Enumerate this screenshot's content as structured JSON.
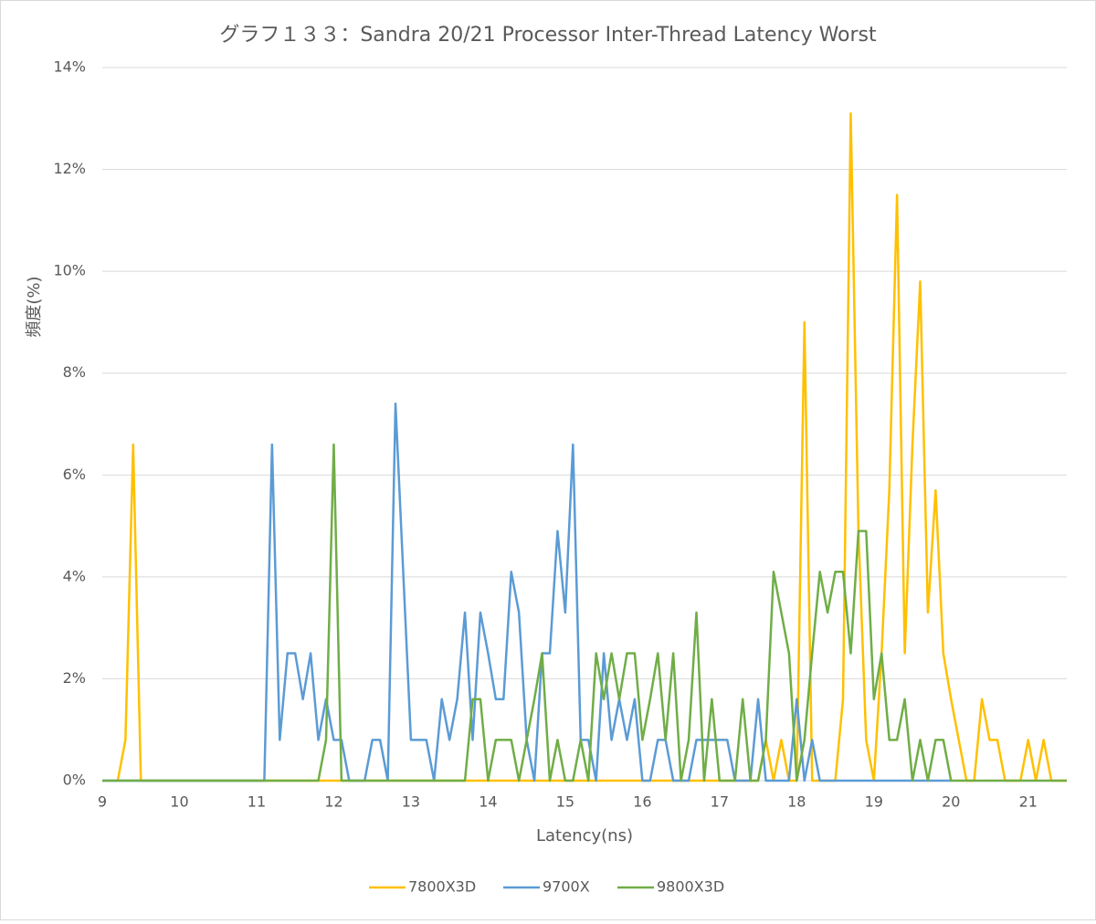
{
  "chart_data": {
    "type": "line",
    "title": "グラフ１３３：Sandra 20/21 Processor Inter-Thread Latency Worst",
    "x_label": "Latency(ns)",
    "y_label": "頻度(%)",
    "xlim": [
      9,
      21.5
    ],
    "ylim": [
      0,
      14
    ],
    "xticks": [
      9,
      10,
      11,
      12,
      13,
      14,
      15,
      16,
      17,
      18,
      19,
      20,
      21
    ],
    "yticks": [
      {
        "value": 0,
        "label": "0%"
      },
      {
        "value": 2,
        "label": "2%"
      },
      {
        "value": 4,
        "label": "4%"
      },
      {
        "value": 6,
        "label": "6%"
      },
      {
        "value": 8,
        "label": "8%"
      },
      {
        "value": 10,
        "label": "10%"
      },
      {
        "value": 12,
        "label": "12%"
      },
      {
        "value": 14,
        "label": "14%"
      }
    ],
    "grid": true,
    "legend": "bottom",
    "x": [
      9,
      9.1,
      9.2,
      9.3,
      9.4,
      9.5,
      9.6,
      9.7,
      9.8,
      9.9,
      10,
      10.1,
      10.2,
      10.3,
      10.4,
      10.5,
      10.6,
      10.7,
      10.8,
      10.9,
      11,
      11.1,
      11.2,
      11.3,
      11.4,
      11.5,
      11.6,
      11.7,
      11.8,
      11.9,
      12,
      12.1,
      12.2,
      12.3,
      12.4,
      12.5,
      12.6,
      12.7,
      12.8,
      12.9,
      13,
      13.1,
      13.2,
      13.3,
      13.4,
      13.5,
      13.6,
      13.7,
      13.8,
      13.9,
      14,
      14.1,
      14.2,
      14.3,
      14.4,
      14.5,
      14.6,
      14.7,
      14.8,
      14.9,
      15,
      15.1,
      15.2,
      15.3,
      15.4,
      15.5,
      15.6,
      15.7,
      15.8,
      15.9,
      16,
      16.1,
      16.2,
      16.3,
      16.4,
      16.5,
      16.6,
      16.7,
      16.8,
      16.9,
      17,
      17.1,
      17.2,
      17.3,
      17.4,
      17.5,
      17.6,
      17.7,
      17.8,
      17.9,
      18,
      18.1,
      18.2,
      18.3,
      18.4,
      18.5,
      18.6,
      18.7,
      18.8,
      18.9,
      19,
      19.1,
      19.2,
      19.3,
      19.4,
      19.5,
      19.6,
      19.7,
      19.8,
      19.9,
      20,
      20.1,
      20.2,
      20.3,
      20.4,
      20.5,
      20.6,
      20.7,
      20.8,
      20.9,
      21,
      21.1,
      21.2,
      21.3,
      21.4,
      21.5
    ],
    "series": [
      {
        "name": "7800X3D",
        "color": "#ffc000",
        "values": [
          null,
          null,
          0,
          0.8,
          6.6,
          0,
          0,
          0,
          0,
          0,
          0,
          0,
          0,
          0,
          0,
          0,
          0,
          0,
          0,
          0,
          0,
          0,
          0,
          0,
          0,
          0,
          0,
          0,
          0,
          0,
          0,
          0,
          0,
          0,
          0,
          0,
          0,
          0,
          0,
          0,
          0,
          0,
          0,
          0,
          0,
          0,
          0,
          0,
          0,
          0,
          0,
          0,
          0,
          0,
          0,
          0,
          0,
          0,
          0,
          0,
          0,
          0,
          0,
          0,
          0,
          0,
          0,
          0,
          0,
          0,
          0,
          0,
          0,
          0,
          0,
          0,
          0,
          0,
          0,
          0,
          0,
          0,
          0,
          0,
          0,
          0,
          0.8,
          0,
          0.8,
          0,
          0,
          9.0,
          0,
          0,
          0,
          0,
          1.6,
          13.1,
          4.9,
          0.8,
          0,
          2.5,
          5.7,
          11.5,
          2.5,
          6.6,
          9.8,
          3.3,
          5.7,
          2.5,
          1.6,
          0.8,
          0,
          0,
          1.6,
          0.8,
          0.8,
          0,
          0,
          0,
          0.8,
          0,
          0.8,
          0,
          0,
          0
        ]
      },
      {
        "name": "9700X",
        "color": "#5b9bd5",
        "values": [
          0,
          0,
          0,
          0,
          0,
          0,
          0,
          0,
          0,
          0,
          0,
          0,
          0,
          0,
          0,
          0,
          0,
          0,
          0,
          0,
          0,
          0,
          6.6,
          0.8,
          2.5,
          2.5,
          1.6,
          2.5,
          0.8,
          1.6,
          0.8,
          0.8,
          0,
          0,
          0,
          0.8,
          0.8,
          0,
          7.4,
          4.1,
          0.8,
          0.8,
          0.8,
          0,
          1.6,
          0.8,
          1.6,
          3.3,
          0.8,
          3.3,
          2.5,
          1.6,
          1.6,
          4.1,
          3.3,
          0.8,
          0,
          2.5,
          2.5,
          4.9,
          3.3,
          6.6,
          0.8,
          0.8,
          0,
          2.5,
          0.8,
          1.6,
          0.8,
          1.6,
          0,
          0,
          0.8,
          0.8,
          0,
          0,
          0,
          0.8,
          0.8,
          0.8,
          0.8,
          0.8,
          0,
          0,
          0,
          1.6,
          0,
          0,
          0,
          0,
          1.6,
          0,
          0.8,
          0,
          0,
          0,
          0,
          0,
          0,
          0,
          0,
          0,
          0,
          0,
          0,
          0,
          0,
          0,
          0,
          0,
          0,
          null,
          null,
          null,
          null,
          null,
          null,
          null,
          null,
          null,
          null,
          null,
          null,
          null,
          null,
          null
        ]
      },
      {
        "name": "9800X3D",
        "color": "#70ad47",
        "values": [
          0,
          0,
          0,
          0,
          0,
          0,
          0,
          0,
          0,
          0,
          0,
          0,
          0,
          0,
          0,
          0,
          0,
          0,
          0,
          0,
          0,
          0,
          0,
          0,
          0,
          0,
          0,
          0,
          0,
          0.8,
          6.6,
          0,
          0,
          0,
          0,
          0,
          0,
          0,
          0,
          0,
          0,
          0,
          0,
          0,
          0,
          0,
          0,
          0,
          1.6,
          1.6,
          0,
          0.8,
          0.8,
          0.8,
          0,
          0.8,
          1.6,
          2.5,
          0,
          0.8,
          0,
          0,
          0.8,
          0,
          2.5,
          1.6,
          2.5,
          1.6,
          2.5,
          2.5,
          0.8,
          1.6,
          2.5,
          0.8,
          2.5,
          0,
          0.8,
          3.3,
          0,
          1.6,
          0,
          0,
          0,
          1.6,
          0,
          0,
          0.8,
          4.1,
          3.3,
          2.5,
          0,
          0.8,
          2.5,
          4.1,
          3.3,
          4.1,
          4.1,
          2.5,
          4.9,
          4.9,
          1.6,
          2.5,
          0.8,
          0.8,
          1.6,
          0,
          0.8,
          0,
          0.8,
          0.8,
          0,
          0,
          0,
          0,
          0,
          0,
          0,
          0,
          0,
          0,
          0,
          0,
          0,
          0,
          0,
          0
        ]
      }
    ]
  }
}
